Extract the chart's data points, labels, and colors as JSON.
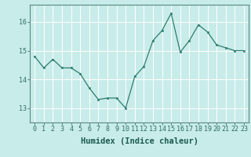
{
  "xlabel": "Humidex (Indice chaleur)",
  "ylabel": "",
  "x": [
    0,
    1,
    2,
    3,
    4,
    5,
    6,
    7,
    8,
    9,
    10,
    11,
    12,
    13,
    14,
    15,
    16,
    17,
    18,
    19,
    20,
    21,
    22,
    23
  ],
  "y": [
    14.8,
    14.4,
    14.7,
    14.4,
    14.4,
    14.2,
    13.7,
    13.3,
    13.35,
    13.35,
    13.0,
    14.1,
    14.45,
    15.35,
    15.7,
    16.3,
    14.95,
    15.35,
    15.9,
    15.65,
    15.2,
    15.1,
    15.0,
    15.0
  ],
  "ylim": [
    12.5,
    16.6
  ],
  "yticks": [
    13,
    14,
    15,
    16
  ],
  "line_color": "#2e7d6e",
  "marker_color": "#2e7d6e",
  "bg_color": "#c8ece9",
  "grid_color": "#ffffff",
  "axes_color": "#5a8a80",
  "tick_label_color": "#2e6e60",
  "label_color": "#1a5a50",
  "tick_fontsize": 6.0,
  "label_fontsize": 7.5
}
